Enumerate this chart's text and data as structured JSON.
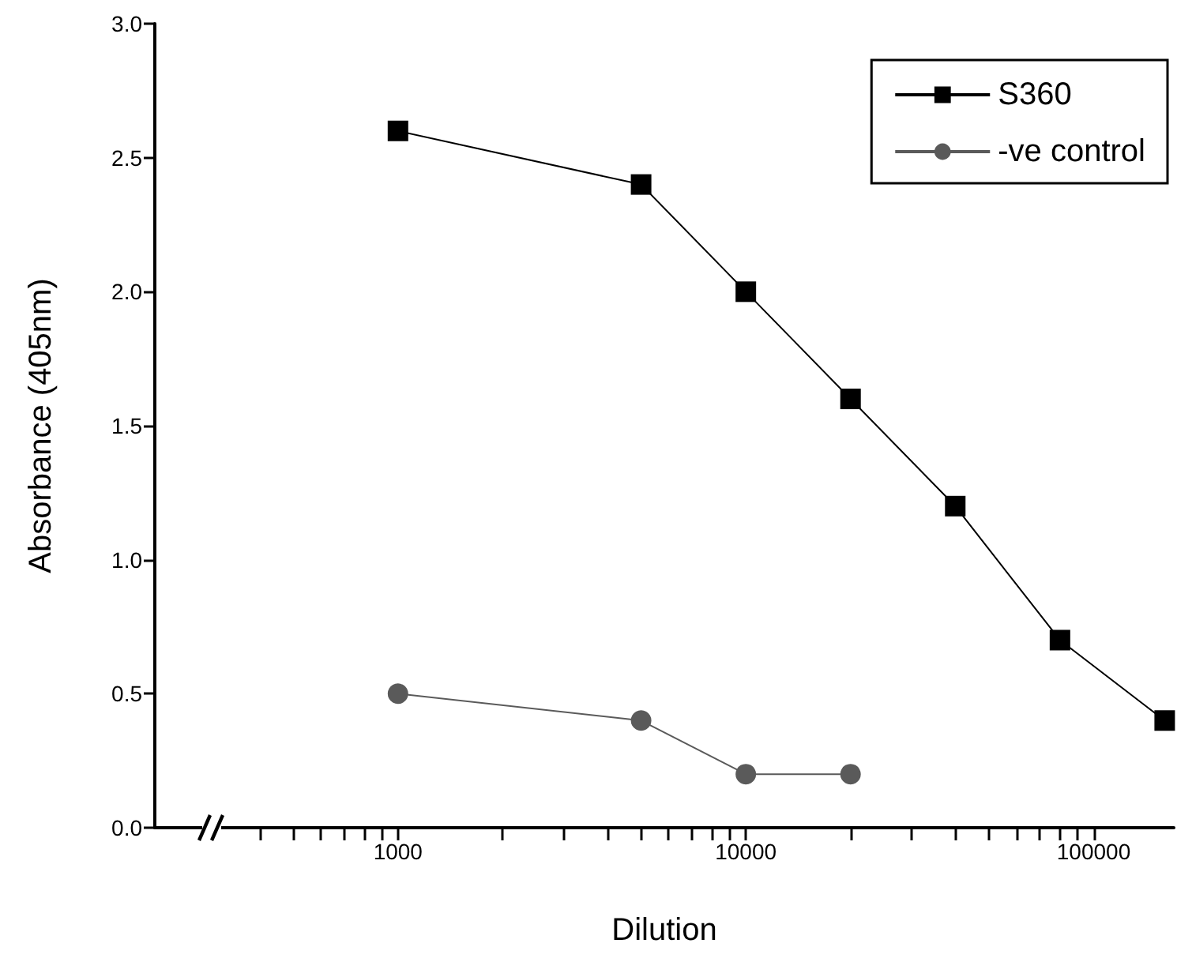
{
  "chart_data": {
    "type": "line",
    "xlabel": "Dilution",
    "ylabel": "Absorbance (405nm)",
    "log": "x",
    "grid": false,
    "legend": "top right",
    "xlim": [
      200,
      170000
    ],
    "ylim": [
      0,
      3
    ],
    "xticks": [
      {
        "value": 400,
        "label": null
      },
      {
        "value": 500,
        "label": null
      },
      {
        "value": 600,
        "label": null
      },
      {
        "value": 700,
        "label": null
      },
      {
        "value": 800,
        "label": null
      },
      {
        "value": 900,
        "label": null
      },
      1000,
      {
        "value": 2000,
        "label": null
      },
      {
        "value": 3000,
        "label": null
      },
      {
        "value": 4000,
        "label": null
      },
      {
        "value": 5000,
        "label": null
      },
      {
        "value": 6000,
        "label": null
      },
      {
        "value": 7000,
        "label": null
      },
      {
        "value": 8000,
        "label": null
      },
      {
        "value": 9000,
        "label": null
      },
      10000,
      {
        "value": 20000,
        "label": null
      },
      {
        "value": 30000,
        "label": null
      },
      {
        "value": 40000,
        "label": null
      },
      {
        "value": 50000,
        "label": null
      },
      {
        "value": 60000,
        "label": null
      },
      {
        "value": 70000,
        "label": null
      },
      {
        "value": 80000,
        "label": null
      },
      {
        "value": 90000,
        "label": null
      },
      100000
    ],
    "yticks": [
      {
        "value": 0,
        "label": "0.0"
      },
      0.5,
      {
        "value": 1,
        "label": "1.0"
      },
      1.5,
      {
        "value": 2,
        "label": "2.0"
      },
      2.5,
      {
        "value": 3,
        "label": "3.0"
      }
    ],
    "series": [
      {
        "name": "S360",
        "color": "#000000",
        "marker": "square",
        "x": [
          1000,
          5000,
          10000,
          20000,
          40000,
          80000,
          160000
        ],
        "values": [
          2.6,
          2.4,
          2.0,
          1.6,
          1.2,
          0.7,
          0.4
        ]
      },
      {
        "name": "-ve control",
        "color": "#5a5a5a",
        "marker": "circle",
        "x": [
          1000,
          5000,
          10000,
          20000
        ],
        "values": [
          0.5,
          0.4,
          0.2,
          0.2
        ]
      }
    ]
  }
}
